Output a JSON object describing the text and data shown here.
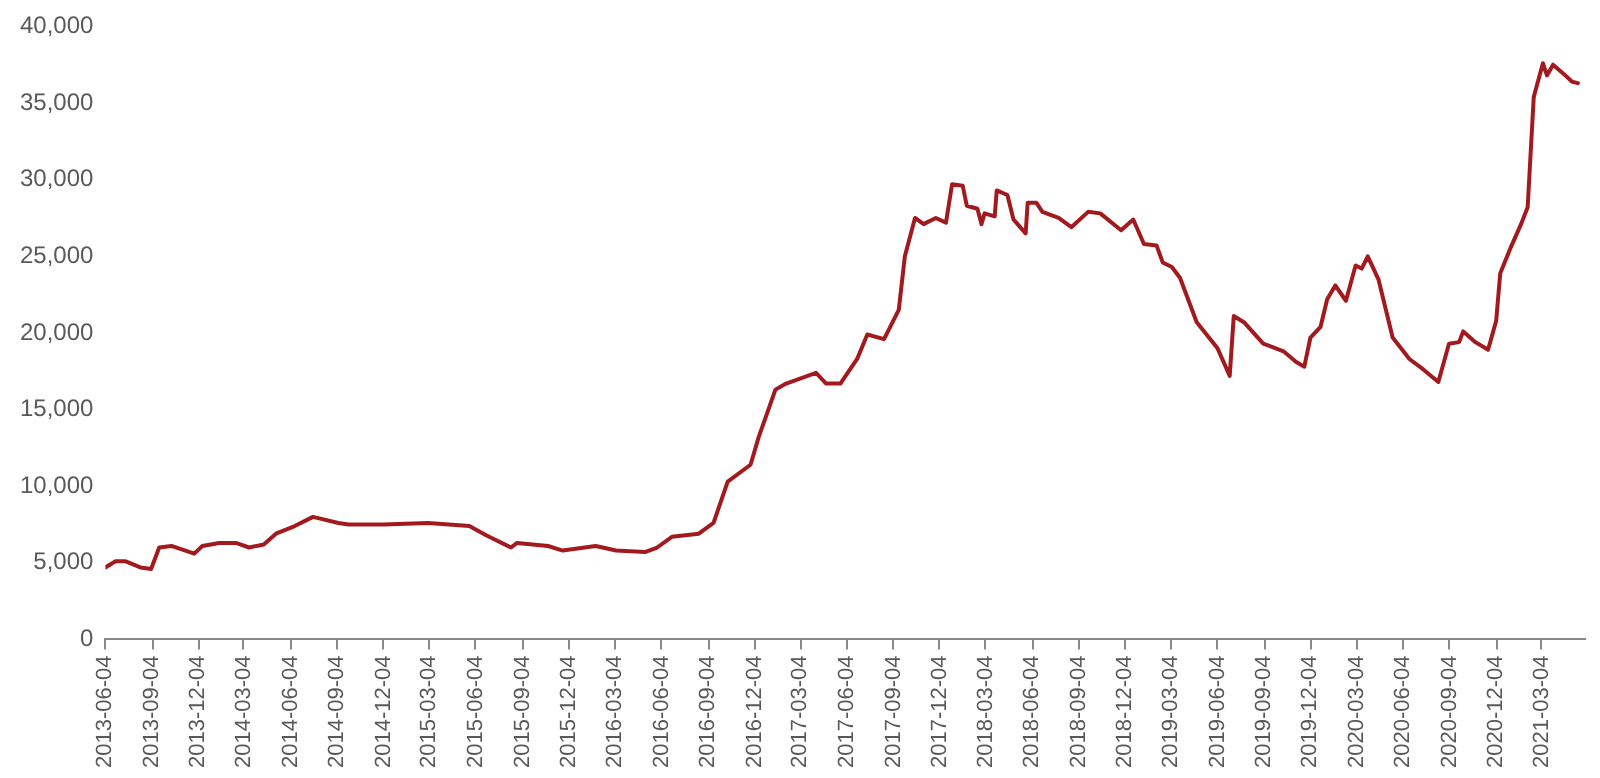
{
  "chart_data": {
    "type": "line",
    "x": [
      "2013-06-04",
      "2013-06-24",
      "2013-07-14",
      "2013-08-12",
      "2013-09-02",
      "2013-09-18",
      "2013-10-12",
      "2013-11-26",
      "2013-12-12",
      "2014-01-14",
      "2014-02-16",
      "2014-03-14",
      "2014-04-12",
      "2014-05-06",
      "2014-06-12",
      "2014-07-18",
      "2014-09-06",
      "2014-09-26",
      "2014-12-04",
      "2015-03-02",
      "2015-05-22",
      "2015-06-24",
      "2015-08-12",
      "2015-08-24",
      "2015-10-24",
      "2015-11-22",
      "2016-01-26",
      "2016-03-06",
      "2016-05-02",
      "2016-05-26",
      "2016-06-24",
      "2016-08-16",
      "2016-09-14",
      "2016-10-12",
      "2016-11-26",
      "2016-12-12",
      "2017-01-14",
      "2017-02-04",
      "2017-04-04",
      "2017-04-24",
      "2017-05-22",
      "2017-06-24",
      "2017-07-14",
      "2017-08-16",
      "2017-09-14",
      "2017-09-26",
      "2017-10-16",
      "2017-11-02",
      "2017-11-26",
      "2017-12-16",
      "2017-12-28",
      "2018-01-18",
      "2018-01-26",
      "2018-02-16",
      "2018-02-24",
      "2018-03-02",
      "2018-03-22",
      "2018-03-26",
      "2018-04-16",
      "2018-04-28",
      "2018-05-22",
      "2018-05-26",
      "2018-06-12",
      "2018-06-24",
      "2018-07-26",
      "2018-08-20",
      "2018-09-22",
      "2018-10-16",
      "2018-11-26",
      "2018-12-20",
      "2019-01-10",
      "2019-02-04",
      "2019-02-16",
      "2019-03-06",
      "2019-03-22",
      "2019-04-24",
      "2019-06-04",
      "2019-06-28",
      "2019-07-06",
      "2019-07-26",
      "2019-09-02",
      "2019-10-12",
      "2019-11-06",
      "2019-11-22",
      "2019-12-04",
      "2019-12-24",
      "2020-01-06",
      "2020-01-22",
      "2020-02-12",
      "2020-03-02",
      "2020-03-14",
      "2020-03-26",
      "2020-04-16",
      "2020-05-14",
      "2020-06-16",
      "2020-07-14",
      "2020-08-12",
      "2020-09-02",
      "2020-09-22",
      "2020-09-30",
      "2020-10-24",
      "2020-11-18",
      "2020-12-04",
      "2020-12-12",
      "2021-01-02",
      "2021-01-22",
      "2021-02-04",
      "2021-02-16",
      "2021-03-06",
      "2021-03-14",
      "2021-03-26",
      "2021-04-16",
      "2021-05-02",
      "2021-05-14"
    ],
    "series": [
      {
        "color": "#a31a1e",
        "values": [
          4700,
          5100,
          5100,
          4700,
          4600,
          6000,
          6100,
          5600,
          6100,
          6300,
          6300,
          6000,
          6200,
          6900,
          7400,
          8000,
          7600,
          7500,
          7500,
          7600,
          7400,
          6800,
          6000,
          6300,
          6100,
          5800,
          6100,
          5800,
          5700,
          6000,
          6700,
          6900,
          7600,
          10300,
          11400,
          13200,
          16300,
          16700,
          17400,
          16700,
          16700,
          18300,
          19900,
          19600,
          21500,
          25000,
          27500,
          27100,
          27500,
          27200,
          29700,
          29600,
          28300,
          28100,
          27100,
          27800,
          27600,
          29300,
          29000,
          27400,
          26500,
          28500,
          28500,
          27900,
          27500,
          26900,
          27900,
          27800,
          26700,
          27400,
          25800,
          25700,
          24600,
          24300,
          23600,
          20700,
          19000,
          17200,
          21100,
          20700,
          19300,
          18800,
          18100,
          17800,
          19700,
          20400,
          22200,
          23100,
          22100,
          24400,
          24200,
          25000,
          23500,
          19700,
          18300,
          17600,
          16800,
          19300,
          19400,
          20100,
          19400,
          18900,
          20800,
          23900,
          25600,
          27100,
          28200,
          35400,
          37600,
          36800,
          37500,
          36900,
          36400,
          36300
        ]
      }
    ],
    "xlim": [
      "2013-06-04",
      "2021-05-26"
    ],
    "xticks": [
      "2013-06-04",
      "2013-09-04",
      "2013-12-04",
      "2014-03-04",
      "2014-06-04",
      "2014-09-04",
      "2014-12-04",
      "2015-03-04",
      "2015-06-04",
      "2015-09-04",
      "2015-12-04",
      "2016-03-04",
      "2016-06-04",
      "2016-09-04",
      "2016-12-04",
      "2017-03-04",
      "2017-06-04",
      "2017-09-04",
      "2017-12-04",
      "2018-03-04",
      "2018-06-04",
      "2018-09-04",
      "2018-12-04",
      "2019-03-04",
      "2019-06-04",
      "2019-09-04",
      "2019-12-04",
      "2020-03-04",
      "2020-06-04",
      "2020-09-04",
      "2020-12-04",
      "2021-03-04"
    ],
    "ylim": [
      0,
      40000
    ],
    "yticks": [
      0,
      {
        "value": 5000,
        "label": "5,000"
      },
      {
        "value": 10000,
        "label": "10,000"
      },
      {
        "value": 15000,
        "label": "15,000"
      },
      {
        "value": 20000,
        "label": "20,000"
      },
      {
        "value": 25000,
        "label": "25,000"
      },
      {
        "value": 30000,
        "label": "30,000"
      },
      {
        "value": 35000,
        "label": "35,000"
      },
      {
        "value": 40000,
        "label": "40,000"
      }
    ],
    "grid": false,
    "legend": false,
    "marker": "none",
    "line_style": "solid"
  }
}
